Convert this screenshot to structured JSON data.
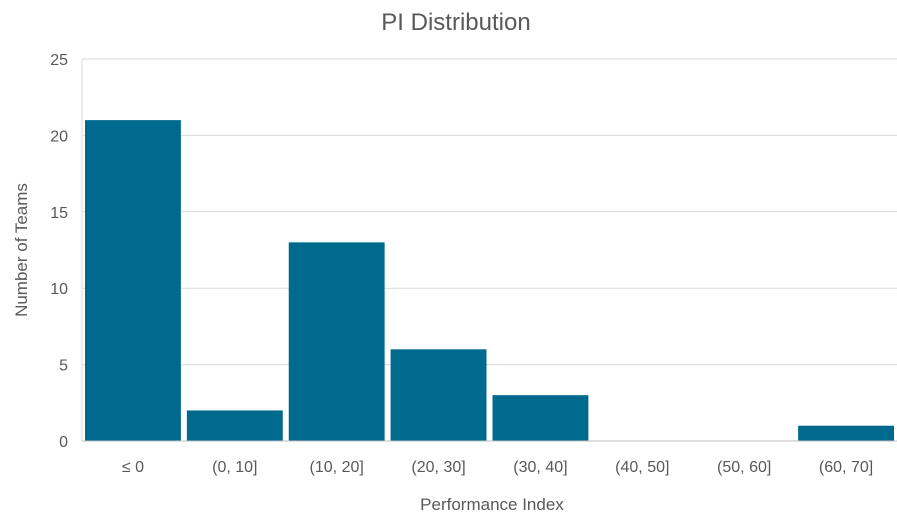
{
  "chart_data": {
    "type": "bar",
    "title": "PI Distribution",
    "xlabel": "Performance Index",
    "ylabel": "Number of Teams",
    "categories": [
      "≤ 0",
      "(0, 10]",
      "(10, 20]",
      "(20, 30]",
      "(30, 40]",
      "(40, 50]",
      "(50, 60]",
      "(60, 70]"
    ],
    "values": [
      21,
      2,
      13,
      6,
      3,
      0,
      0,
      1
    ],
    "ylim": [
      0,
      25
    ],
    "yticks": [
      0,
      5,
      10,
      15,
      20,
      25
    ],
    "grid": true,
    "legend": "none",
    "colors": {
      "bar": "#006a8e",
      "grid": "#d9d9d9",
      "axis": "#bfbfbf",
      "text": "#595959"
    }
  }
}
